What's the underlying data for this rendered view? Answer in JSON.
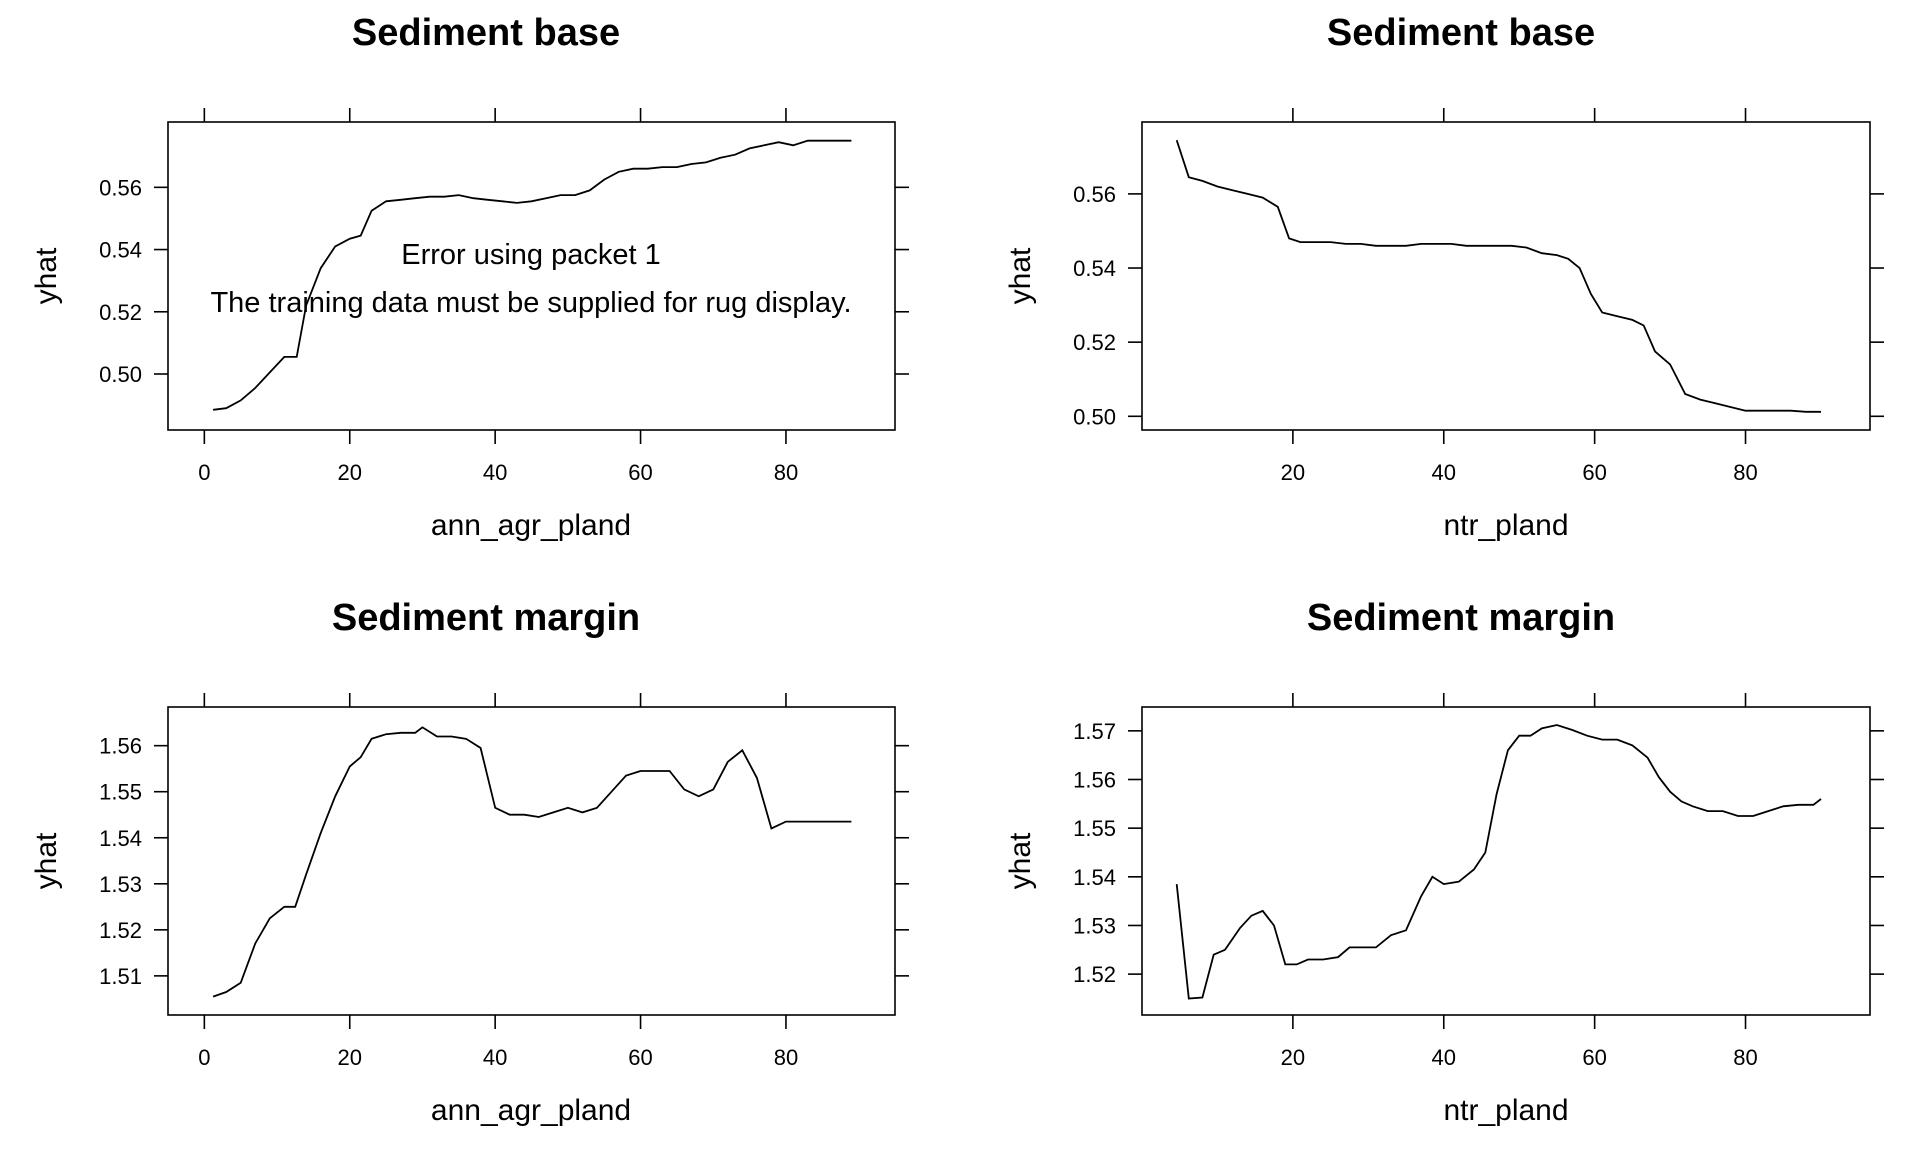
{
  "chart_data": [
    {
      "type": "line",
      "title": "Sediment base",
      "xlabel": "ann_agr_pland",
      "ylabel": "yhat",
      "xlim": [
        -5,
        95
      ],
      "ylim": [
        0.482,
        0.581
      ],
      "xticks": [
        0,
        20,
        40,
        60,
        80
      ],
      "yticks": [
        0.5,
        0.52,
        0.54,
        0.56
      ],
      "xtick_labels": [
        "0",
        "20",
        "40",
        "60",
        "80"
      ],
      "ytick_labels": [
        "0.50",
        "0.52",
        "0.54",
        "0.56"
      ],
      "annotations": [
        "Error using packet 1",
        "The training data must be supplied for rug display."
      ],
      "series": [
        {
          "x": [
            1.2,
            3,
            5,
            7,
            9,
            11,
            12.7,
            14,
            16,
            18,
            20,
            21.5,
            23,
            25,
            27,
            29,
            31,
            33,
            35,
            37,
            39,
            41,
            43,
            45,
            47,
            49,
            51,
            53,
            55,
            57,
            59,
            61,
            63,
            65,
            67,
            69,
            71,
            73,
            75,
            77,
            79,
            81,
            83,
            85,
            87,
            89
          ],
          "y": [
            0.4885,
            0.489,
            0.4915,
            0.4955,
            0.5005,
            0.5055,
            0.5055,
            0.522,
            0.534,
            0.541,
            0.5435,
            0.5445,
            0.5525,
            0.5555,
            0.556,
            0.5565,
            0.557,
            0.557,
            0.5575,
            0.5565,
            0.556,
            0.5555,
            0.555,
            0.5555,
            0.5565,
            0.5575,
            0.5575,
            0.559,
            0.5625,
            0.565,
            0.566,
            0.566,
            0.5665,
            0.5665,
            0.5675,
            0.568,
            0.5695,
            0.5705,
            0.5725,
            0.5735,
            0.5745,
            0.5735,
            0.575,
            0.575,
            0.575,
            0.575
          ]
        }
      ]
    },
    {
      "type": "line",
      "title": "Sediment base",
      "xlabel": "ntr_pland",
      "ylabel": "yhat",
      "xlim": [
        0,
        96.5
      ],
      "ylim": [
        0.4963,
        0.5794
      ],
      "xticks": [
        20,
        40,
        60,
        80
      ],
      "yticks": [
        0.5,
        0.52,
        0.54,
        0.56
      ],
      "xtick_labels": [
        "20",
        "40",
        "60",
        "80"
      ],
      "ytick_labels": [
        "0.50",
        "0.52",
        "0.54",
        "0.56"
      ],
      "series": [
        {
          "x": [
            4.6,
            6.2,
            8,
            10,
            12,
            14,
            16,
            18,
            19.5,
            21,
            23,
            25,
            27,
            29,
            31,
            33,
            35,
            37,
            39,
            41,
            43,
            45,
            47,
            49,
            51,
            53,
            55,
            56.5,
            58,
            59.5,
            61,
            63,
            65,
            66.5,
            68,
            70,
            72,
            74,
            76,
            78,
            80,
            82,
            84,
            86,
            88,
            90
          ],
          "y": [
            0.5745,
            0.5645,
            0.5635,
            0.562,
            0.561,
            0.56,
            0.559,
            0.5565,
            0.548,
            0.547,
            0.547,
            0.547,
            0.5465,
            0.5465,
            0.546,
            0.546,
            0.546,
            0.5465,
            0.5465,
            0.5465,
            0.546,
            0.546,
            0.546,
            0.546,
            0.5455,
            0.544,
            0.5435,
            0.5425,
            0.54,
            0.533,
            0.528,
            0.527,
            0.526,
            0.5245,
            0.5175,
            0.514,
            0.506,
            0.5045,
            0.5035,
            0.5025,
            0.5015,
            0.5015,
            0.5015,
            0.5015,
            0.5012,
            0.5012
          ]
        }
      ]
    },
    {
      "type": "line",
      "title": "Sediment margin",
      "xlabel": "ann_agr_pland",
      "ylabel": "yhat",
      "xlim": [
        -5,
        95
      ],
      "ylim": [
        1.5015,
        1.5684
      ],
      "xticks": [
        0,
        20,
        40,
        60,
        80
      ],
      "yticks": [
        1.51,
        1.52,
        1.53,
        1.54,
        1.55,
        1.56
      ],
      "xtick_labels": [
        "0",
        "20",
        "40",
        "60",
        "80"
      ],
      "ytick_labels": [
        "1.51",
        "1.52",
        "1.53",
        "1.54",
        "1.55",
        "1.56"
      ],
      "series": [
        {
          "x": [
            1.2,
            3,
            5,
            7,
            9,
            11,
            12.5,
            14,
            16,
            18,
            20,
            21.5,
            23,
            25,
            27,
            29,
            30,
            32,
            34,
            36,
            38,
            40,
            42,
            44,
            46,
            48,
            50,
            52,
            54,
            56,
            58,
            60,
            62,
            64,
            66,
            68,
            70,
            72,
            74,
            76,
            78,
            80,
            82,
            84,
            86,
            88,
            89
          ],
          "y": [
            1.5055,
            1.5065,
            1.5085,
            1.517,
            1.5225,
            1.525,
            1.525,
            1.532,
            1.541,
            1.549,
            1.5555,
            1.5575,
            1.5615,
            1.5625,
            1.5628,
            1.5628,
            1.564,
            1.562,
            1.562,
            1.5615,
            1.5595,
            1.5465,
            1.545,
            1.545,
            1.5445,
            1.5455,
            1.5465,
            1.5455,
            1.5465,
            1.55,
            1.5535,
            1.5545,
            1.5545,
            1.5545,
            1.5505,
            1.549,
            1.5505,
            1.5565,
            1.559,
            1.553,
            1.542,
            1.5435,
            1.5435,
            1.5435,
            1.5435,
            1.5435,
            1.5435
          ]
        }
      ]
    },
    {
      "type": "line",
      "title": "Sediment margin",
      "xlabel": "ntr_pland",
      "ylabel": "yhat",
      "xlim": [
        0,
        96.5
      ],
      "ylim": [
        1.5116,
        1.5749
      ],
      "xticks": [
        20,
        40,
        60,
        80
      ],
      "yticks": [
        1.52,
        1.53,
        1.54,
        1.55,
        1.56,
        1.57
      ],
      "xtick_labels": [
        "20",
        "40",
        "60",
        "80"
      ],
      "ytick_labels": [
        "1.52",
        "1.53",
        "1.54",
        "1.55",
        "1.56",
        "1.57"
      ],
      "series": [
        {
          "x": [
            4.6,
            6.2,
            8,
            9.5,
            11,
            13,
            14.5,
            16,
            17.5,
            19,
            20.5,
            22,
            24,
            26,
            27.5,
            29,
            31,
            33,
            35,
            37,
            38.5,
            40,
            42,
            44,
            45.5,
            47,
            48.5,
            50,
            51.5,
            53,
            55,
            57,
            59,
            61,
            63,
            65,
            67,
            68.5,
            70,
            71.5,
            73,
            75,
            77,
            79,
            81,
            83,
            85,
            87,
            89,
            90
          ],
          "y": [
            1.5385,
            1.515,
            1.5152,
            1.524,
            1.525,
            1.5295,
            1.532,
            1.533,
            1.53,
            1.522,
            1.522,
            1.523,
            1.523,
            1.5235,
            1.5255,
            1.5255,
            1.5255,
            1.528,
            1.529,
            1.536,
            1.54,
            1.5385,
            1.539,
            1.5415,
            1.545,
            1.557,
            1.566,
            1.569,
            1.569,
            1.5705,
            1.5712,
            1.5702,
            1.569,
            1.5682,
            1.5682,
            1.567,
            1.5645,
            1.5605,
            1.5575,
            1.5555,
            1.5545,
            1.5535,
            1.5535,
            1.5525,
            1.5525,
            1.5535,
            1.5545,
            1.5548,
            1.5548,
            1.556
          ]
        }
      ]
    }
  ]
}
